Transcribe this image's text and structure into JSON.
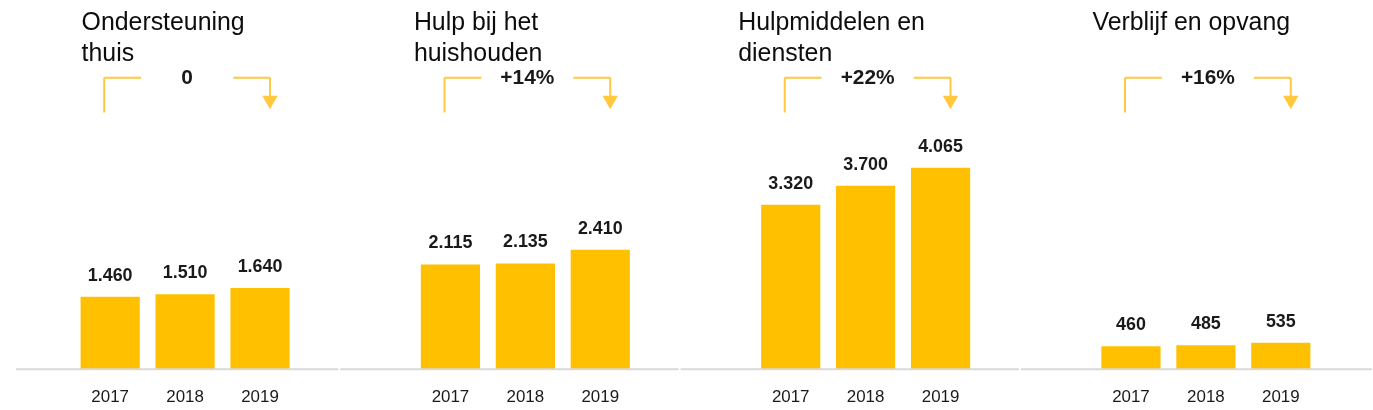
{
  "chart_data": [
    {
      "type": "bar",
      "title": "Ondersteuning thuis",
      "categories": [
        "2017",
        "2018",
        "2019"
      ],
      "values": [
        1460,
        1510,
        1640
      ],
      "value_labels": [
        "1.460",
        "1.510",
        "1.640"
      ],
      "color": "#ffc000",
      "annotations": [
        "0"
      ]
    },
    {
      "type": "bar",
      "title": "Hulp bij het huishouden",
      "categories": [
        "2017",
        "2018",
        "2019"
      ],
      "values": [
        2115,
        2135,
        2410
      ],
      "value_labels": [
        "2.115",
        "2.135",
        "2.410"
      ],
      "color": "#ffc000",
      "annotations": [
        "+14%"
      ]
    },
    {
      "type": "bar",
      "title": "Hulpmiddelen en diensten",
      "categories": [
        "2017",
        "2018",
        "2019"
      ],
      "values": [
        3320,
        3700,
        4065
      ],
      "value_labels": [
        "3.320",
        "3.700",
        "4.065"
      ],
      "color": "#ffc000",
      "annotations": [
        "+22%"
      ]
    },
    {
      "type": "bar",
      "title": "Verblijf en opvang",
      "categories": [
        "2017",
        "2018",
        "2019"
      ],
      "values": [
        460,
        485,
        535
      ],
      "value_labels": [
        "460",
        "485",
        "535"
      ],
      "color": "#ffc000",
      "annotations": [
        "+16%"
      ]
    }
  ]
}
